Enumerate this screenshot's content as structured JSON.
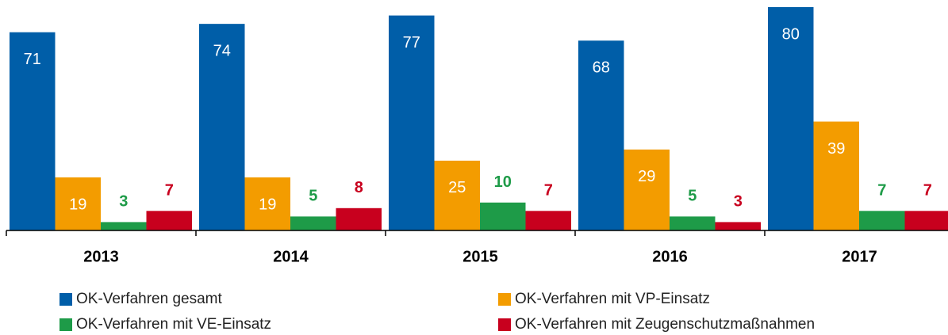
{
  "chart_data": {
    "type": "bar",
    "categories": [
      "2013",
      "2014",
      "2015",
      "2016",
      "2017"
    ],
    "series": [
      {
        "name": "OK-Verfahren gesamt",
        "color": "#005ea8",
        "values": [
          71,
          74,
          77,
          68,
          80
        ]
      },
      {
        "name": "OK-Verfahren mit VP-Einsatz",
        "color": "#f39c00",
        "values": [
          19,
          19,
          25,
          29,
          39
        ]
      },
      {
        "name": "OK-Verfahren mit VE-Einsatz",
        "color": "#1e9b48",
        "values": [
          3,
          5,
          10,
          5,
          7
        ]
      },
      {
        "name": "OK-Verfahren mit Zeugenschutzmaßnahmen",
        "color": "#c8001e",
        "values": [
          7,
          8,
          7,
          3,
          7
        ]
      }
    ],
    "ylim": [
      0,
      80
    ]
  }
}
